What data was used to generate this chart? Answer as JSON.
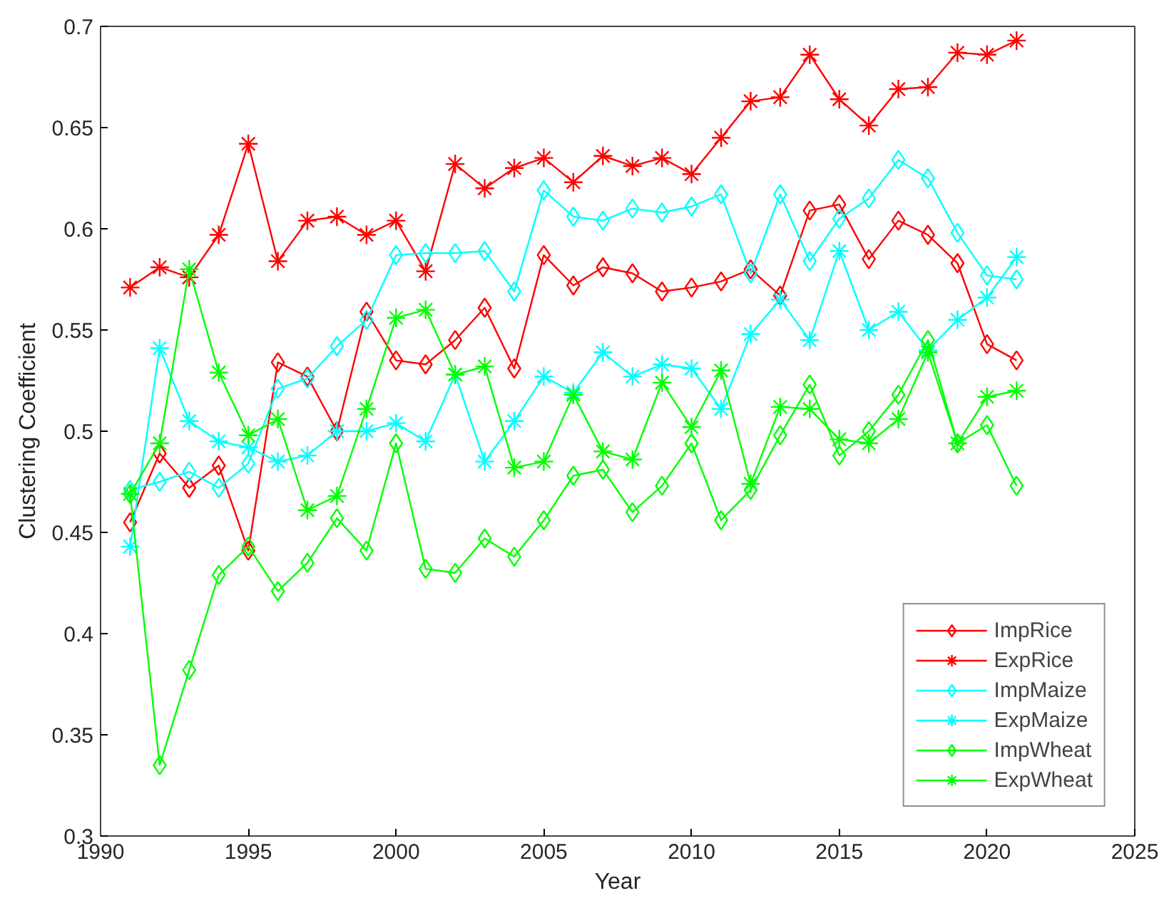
{
  "chart_data": {
    "type": "line",
    "xlabel": "Year",
    "ylabel": "Clustering Coefficient",
    "x": [
      1991,
      1992,
      1993,
      1994,
      1995,
      1996,
      1997,
      1998,
      1999,
      2000,
      2001,
      2002,
      2003,
      2004,
      2005,
      2006,
      2007,
      2008,
      2009,
      2010,
      2011,
      2012,
      2013,
      2014,
      2015,
      2016,
      2017,
      2018,
      2019,
      2020,
      2021
    ],
    "xlim": [
      1990,
      2025
    ],
    "xticks": [
      1990,
      1995,
      2000,
      2005,
      2010,
      2015,
      2020,
      2025
    ],
    "ylim": [
      0.3,
      0.7
    ],
    "yticks": [
      0.3,
      0.35,
      0.4,
      0.45,
      0.5,
      0.55,
      0.6,
      0.65,
      0.7
    ],
    "grid": false,
    "legend": "bottom right",
    "series": [
      {
        "name": "ImpRice",
        "color": "#ff0000",
        "marker": "diamond",
        "values": [
          0.455,
          0.489,
          0.472,
          0.483,
          0.441,
          0.534,
          0.527,
          0.5,
          0.559,
          0.535,
          0.533,
          0.545,
          0.561,
          0.531,
          0.587,
          0.572,
          0.581,
          0.578,
          0.569,
          0.571,
          0.574,
          0.58,
          0.567,
          0.609,
          0.612,
          0.585,
          0.604,
          0.597,
          0.583,
          0.543,
          0.535
        ]
      },
      {
        "name": "ExpRice",
        "color": "#ff0000",
        "marker": "cross",
        "values": [
          0.571,
          0.581,
          0.576,
          0.597,
          0.642,
          0.584,
          0.604,
          0.606,
          0.597,
          0.604,
          0.579,
          0.632,
          0.62,
          0.63,
          0.635,
          0.623,
          0.636,
          0.631,
          0.635,
          0.627,
          0.645,
          0.663,
          0.665,
          0.686,
          0.664,
          0.651,
          0.669,
          0.67,
          0.687,
          0.686,
          0.693
        ]
      },
      {
        "name": "ImpMaize",
        "color": "#00ffff",
        "marker": "diamond",
        "values": [
          0.471,
          0.475,
          0.48,
          0.472,
          0.484,
          0.521,
          0.526,
          0.542,
          0.555,
          0.587,
          0.588,
          0.588,
          0.589,
          0.569,
          0.619,
          0.606,
          0.604,
          0.61,
          0.608,
          0.611,
          0.617,
          0.578,
          0.617,
          0.584,
          0.605,
          0.615,
          0.634,
          0.625,
          0.598,
          0.577,
          0.575
        ]
      },
      {
        "name": "ExpMaize",
        "color": "#00ffff",
        "marker": "cross",
        "values": [
          0.443,
          0.541,
          0.505,
          0.495,
          0.492,
          0.485,
          0.488,
          0.5,
          0.5,
          0.504,
          0.495,
          0.528,
          0.485,
          0.505,
          0.527,
          0.519,
          0.539,
          0.527,
          0.533,
          0.531,
          0.511,
          0.548,
          0.565,
          0.545,
          0.589,
          0.55,
          0.559,
          0.54,
          0.555,
          0.566,
          0.586
        ]
      },
      {
        "name": "ImpWheat",
        "color": "#00ff00",
        "marker": "diamond",
        "values": [
          0.469,
          0.335,
          0.382,
          0.429,
          0.443,
          0.421,
          0.435,
          0.457,
          0.441,
          0.494,
          0.432,
          0.43,
          0.447,
          0.438,
          0.456,
          0.478,
          0.481,
          0.46,
          0.473,
          0.494,
          0.456,
          0.471,
          0.498,
          0.523,
          0.488,
          0.5,
          0.518,
          0.545,
          0.494,
          0.503,
          0.473
        ]
      },
      {
        "name": "ExpWheat",
        "color": "#00ff00",
        "marker": "cross",
        "values": [
          0.469,
          0.494,
          0.58,
          0.529,
          0.498,
          0.506,
          0.461,
          0.468,
          0.511,
          0.556,
          0.56,
          0.528,
          0.532,
          0.482,
          0.485,
          0.518,
          0.49,
          0.486,
          0.524,
          0.502,
          0.53,
          0.474,
          0.512,
          0.511,
          0.496,
          0.494,
          0.506,
          0.539,
          0.494,
          0.517,
          0.52
        ]
      }
    ]
  }
}
